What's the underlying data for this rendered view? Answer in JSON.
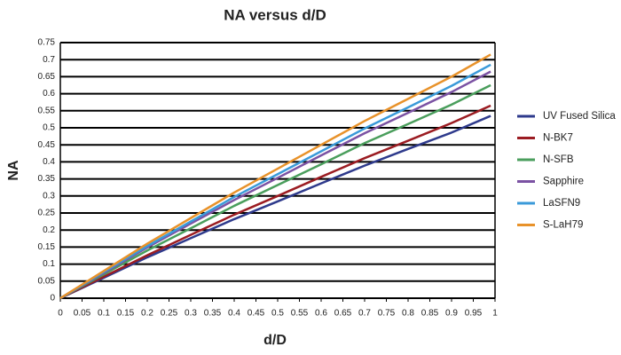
{
  "chart_data": {
    "type": "line",
    "title": "NA versus d/D",
    "x_label": "d/D",
    "y_label": "NA",
    "x": [
      0,
      0.1,
      0.2,
      0.3,
      0.4,
      0.5,
      0.6,
      0.7,
      0.8,
      0.9,
      0.99
    ],
    "series": [
      {
        "name": "UV Fused Silica",
        "color": "#2e3a8c",
        "values": [
          0,
          0.06,
          0.12,
          0.176,
          0.232,
          0.284,
          0.337,
          0.389,
          0.438,
          0.486,
          0.535
        ]
      },
      {
        "name": "N-BK7",
        "color": "#9b1c22",
        "values": [
          0,
          0.063,
          0.126,
          0.186,
          0.245,
          0.3,
          0.356,
          0.411,
          0.462,
          0.514,
          0.565
        ]
      },
      {
        "name": "N-SFB",
        "color": "#4a9e5c",
        "values": [
          0,
          0.07,
          0.14,
          0.205,
          0.271,
          0.332,
          0.393,
          0.455,
          0.511,
          0.568,
          0.625
        ]
      },
      {
        "name": "Sapphire",
        "color": "#7b52a3",
        "values": [
          0,
          0.074,
          0.149,
          0.219,
          0.288,
          0.353,
          0.419,
          0.484,
          0.544,
          0.605,
          0.665
        ]
      },
      {
        "name": "LaSFN9",
        "color": "#3a9ad9",
        "values": [
          0,
          0.077,
          0.153,
          0.225,
          0.297,
          0.364,
          0.431,
          0.498,
          0.56,
          0.623,
          0.685
        ]
      },
      {
        "name": "S-LaH79",
        "color": "#e8922a",
        "values": [
          0,
          0.08,
          0.16,
          0.235,
          0.31,
          0.38,
          0.45,
          0.52,
          0.585,
          0.65,
          0.715
        ]
      }
    ],
    "xlim": [
      0,
      1
    ],
    "ylim": [
      0,
      0.75
    ],
    "xticks": [
      0,
      0.05,
      0.1,
      0.15,
      0.2,
      0.25,
      0.3,
      0.35,
      0.4,
      0.45,
      0.5,
      0.55,
      0.6,
      0.65,
      0.7,
      0.75,
      0.8,
      0.85,
      0.9,
      0.95,
      1
    ],
    "yticks": [
      0,
      0.05,
      0.1,
      0.15,
      0.2,
      0.25,
      0.3,
      0.35,
      0.4,
      0.45,
      0.5,
      0.55,
      0.6,
      0.65,
      0.7,
      0.75
    ],
    "grid": true,
    "legend": "right"
  }
}
